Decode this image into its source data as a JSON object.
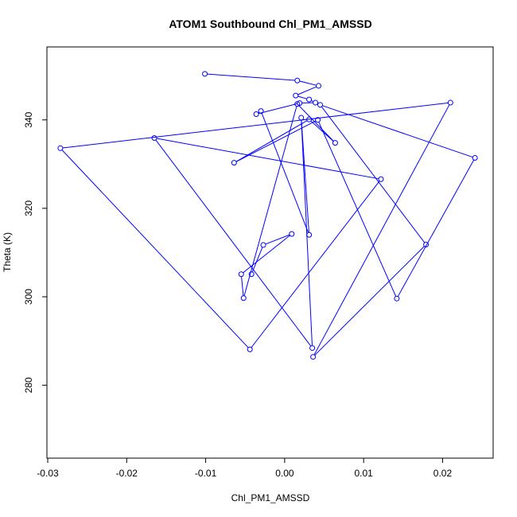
{
  "chart_data": {
    "type": "line",
    "title": "ATOM1 Southbound Chl_PM1_AMSSD",
    "xlabel": "Chl_PM1_AMSSD",
    "ylabel": "Theta (K)",
    "xlim": [
      -0.0301,
      0.0264
    ],
    "ylim": [
      263.5,
      356.5
    ],
    "x_ticks": [
      -0.03,
      -0.02,
      -0.01,
      0.0,
      0.01,
      0.02
    ],
    "x_tick_labels": [
      "-0.03",
      "-0.02",
      "-0.01",
      "0.00",
      "0.01",
      "0.02"
    ],
    "y_ticks": [
      280,
      300,
      320,
      340
    ],
    "y_tick_labels": [
      "280",
      "300",
      "320",
      "340"
    ],
    "grid": false,
    "series": [
      {
        "color": "#0000ff",
        "marker": "open-circle",
        "points": [
          {
            "x": -0.0101,
            "y": 350.4
          },
          {
            "x": 0.0016,
            "y": 348.9
          },
          {
            "x": 0.0043,
            "y": 347.7
          },
          {
            "x": 0.0014,
            "y": 345.5
          },
          {
            "x": 0.0031,
            "y": 344.6
          },
          {
            "x": 0.0039,
            "y": 343.9
          },
          {
            "x": 0.0019,
            "y": 343.8
          },
          {
            "x": -0.0036,
            "y": 341.3
          },
          {
            "x": -0.003,
            "y": 342.0
          },
          {
            "x": 0.0031,
            "y": 314.0
          },
          {
            "x": 0.0021,
            "y": 340.5
          },
          {
            "x": 0.0035,
            "y": 288.4
          },
          {
            "x": -0.0165,
            "y": 335.9
          },
          {
            "x": 0.0122,
            "y": 326.6
          },
          {
            "x": -0.0044,
            "y": 288.1
          },
          {
            "x": -0.0284,
            "y": 333.6
          },
          {
            "x": 0.021,
            "y": 343.9
          },
          {
            "x": 0.0036,
            "y": 286.4
          },
          {
            "x": 0.0179,
            "y": 311.8
          },
          {
            "x": 0.0045,
            "y": 343.4
          },
          {
            "x": 0.0241,
            "y": 331.4
          },
          {
            "x": 0.0142,
            "y": 299.6
          },
          {
            "x": 0.0042,
            "y": 340.0
          },
          {
            "x": -0.0064,
            "y": 330.3
          },
          {
            "x": 0.0031,
            "y": 340.1
          },
          {
            "x": 0.0064,
            "y": 334.8
          },
          {
            "x": 0.0016,
            "y": 343.6
          },
          {
            "x": -0.0052,
            "y": 299.7
          },
          {
            "x": -0.0055,
            "y": 305.1
          },
          {
            "x": 0.0009,
            "y": 314.2
          },
          {
            "x": -0.0027,
            "y": 311.7
          },
          {
            "x": -0.0042,
            "y": 305.1
          }
        ]
      }
    ]
  }
}
